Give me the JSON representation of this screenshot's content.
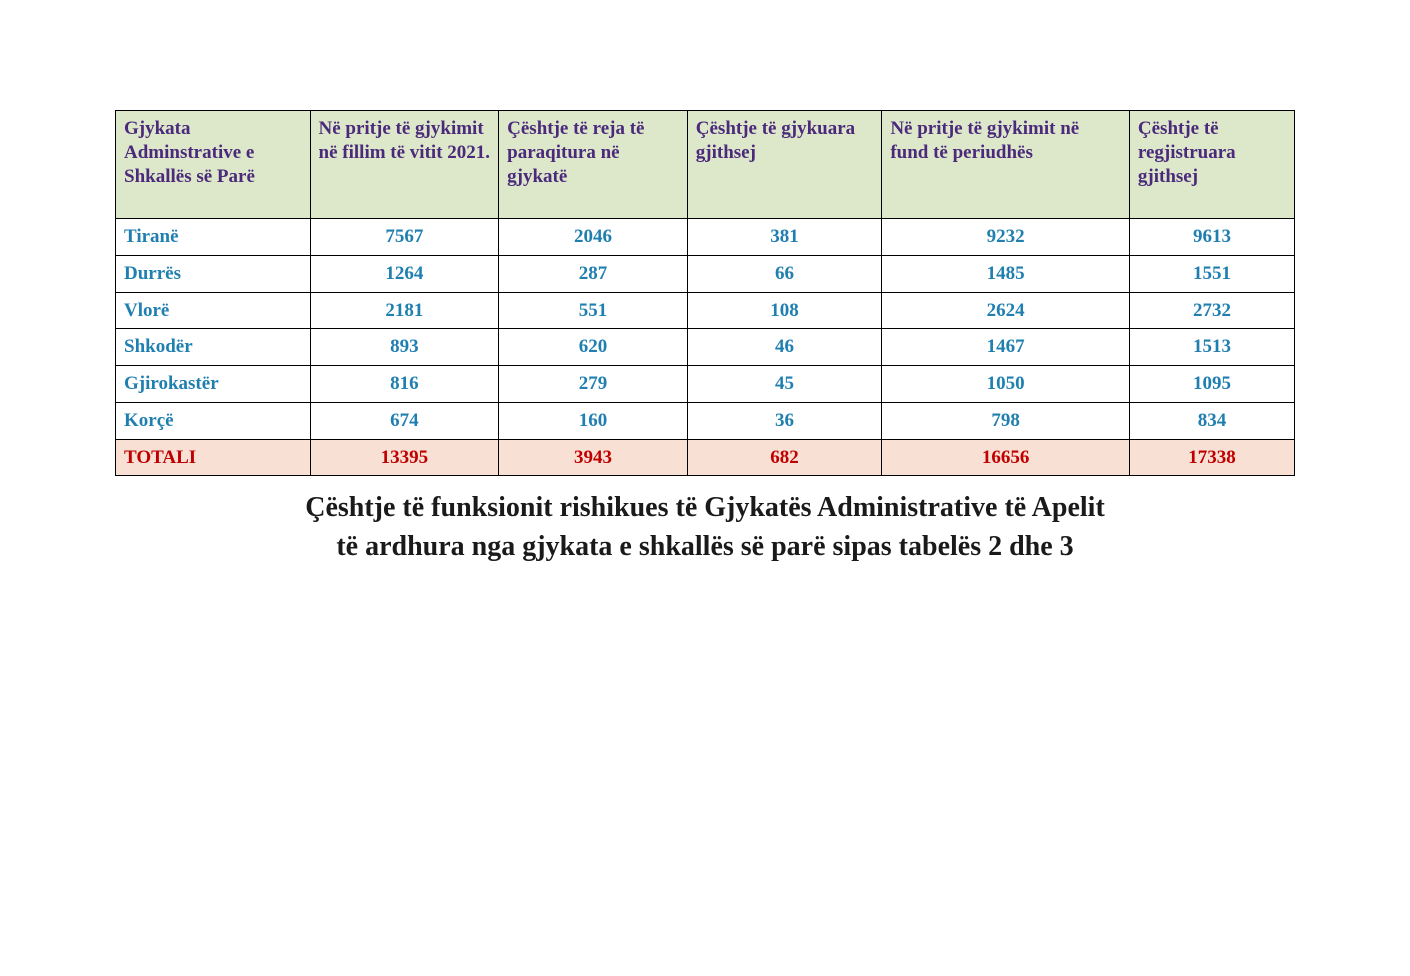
{
  "table": {
    "type": "table",
    "columns": [
      "Gjykata Adminstrative e Shkallës së Parë",
      "Në pritje të gjykimit në fillim të vitit 2021.",
      "Çështje të reja të paraqitura në gjykatë",
      "Çështje të gjykuara  gjithsej",
      "Në pritje të gjykimit në fund të periudhës",
      "Çështje të regjistruara gjithsej"
    ],
    "rows": [
      {
        "name": "Tiranë",
        "values": [
          "7567",
          "2046",
          "381",
          "9232",
          "9613"
        ]
      },
      {
        "name": "Durrës",
        "values": [
          "1264",
          "287",
          "66",
          "1485",
          "1551"
        ]
      },
      {
        "name": "Vlorë",
        "values": [
          "2181",
          "551",
          "108",
          "2624",
          "2732"
        ]
      },
      {
        "name": "Shkodër",
        "values": [
          "893",
          "620",
          "46",
          "1467",
          "1513"
        ]
      },
      {
        "name": "Gjirokastër",
        "values": [
          "816",
          "279",
          "45",
          "1050",
          "1095"
        ]
      },
      {
        "name": "Korçë",
        "values": [
          "674",
          "160",
          "36",
          "798",
          "834"
        ]
      }
    ],
    "total": {
      "name": "TOTALI",
      "values": [
        "13395",
        "3943",
        "682",
        "16656",
        "17338"
      ]
    },
    "styling": {
      "header_bg": "#dde8cb",
      "header_color": "#4b2a7b",
      "row_bg": "#ffffff",
      "row_name_color": "#1f7fb0",
      "row_value_color": "#1f7fb0",
      "total_bg": "#f8e0d4",
      "total_color": "#c00000",
      "border_color": "#000000",
      "cell_fontsize": 19,
      "header_fontsize": 19
    }
  },
  "caption": {
    "line1": "Çështje të funksionit rishikues të Gjykatës Administrative të Apelit",
    "line2": "të ardhura nga  gjykata e shkallës së parë sipas tabelës 2 dhe 3",
    "color": "#1a1a1a",
    "fontsize": 28
  }
}
